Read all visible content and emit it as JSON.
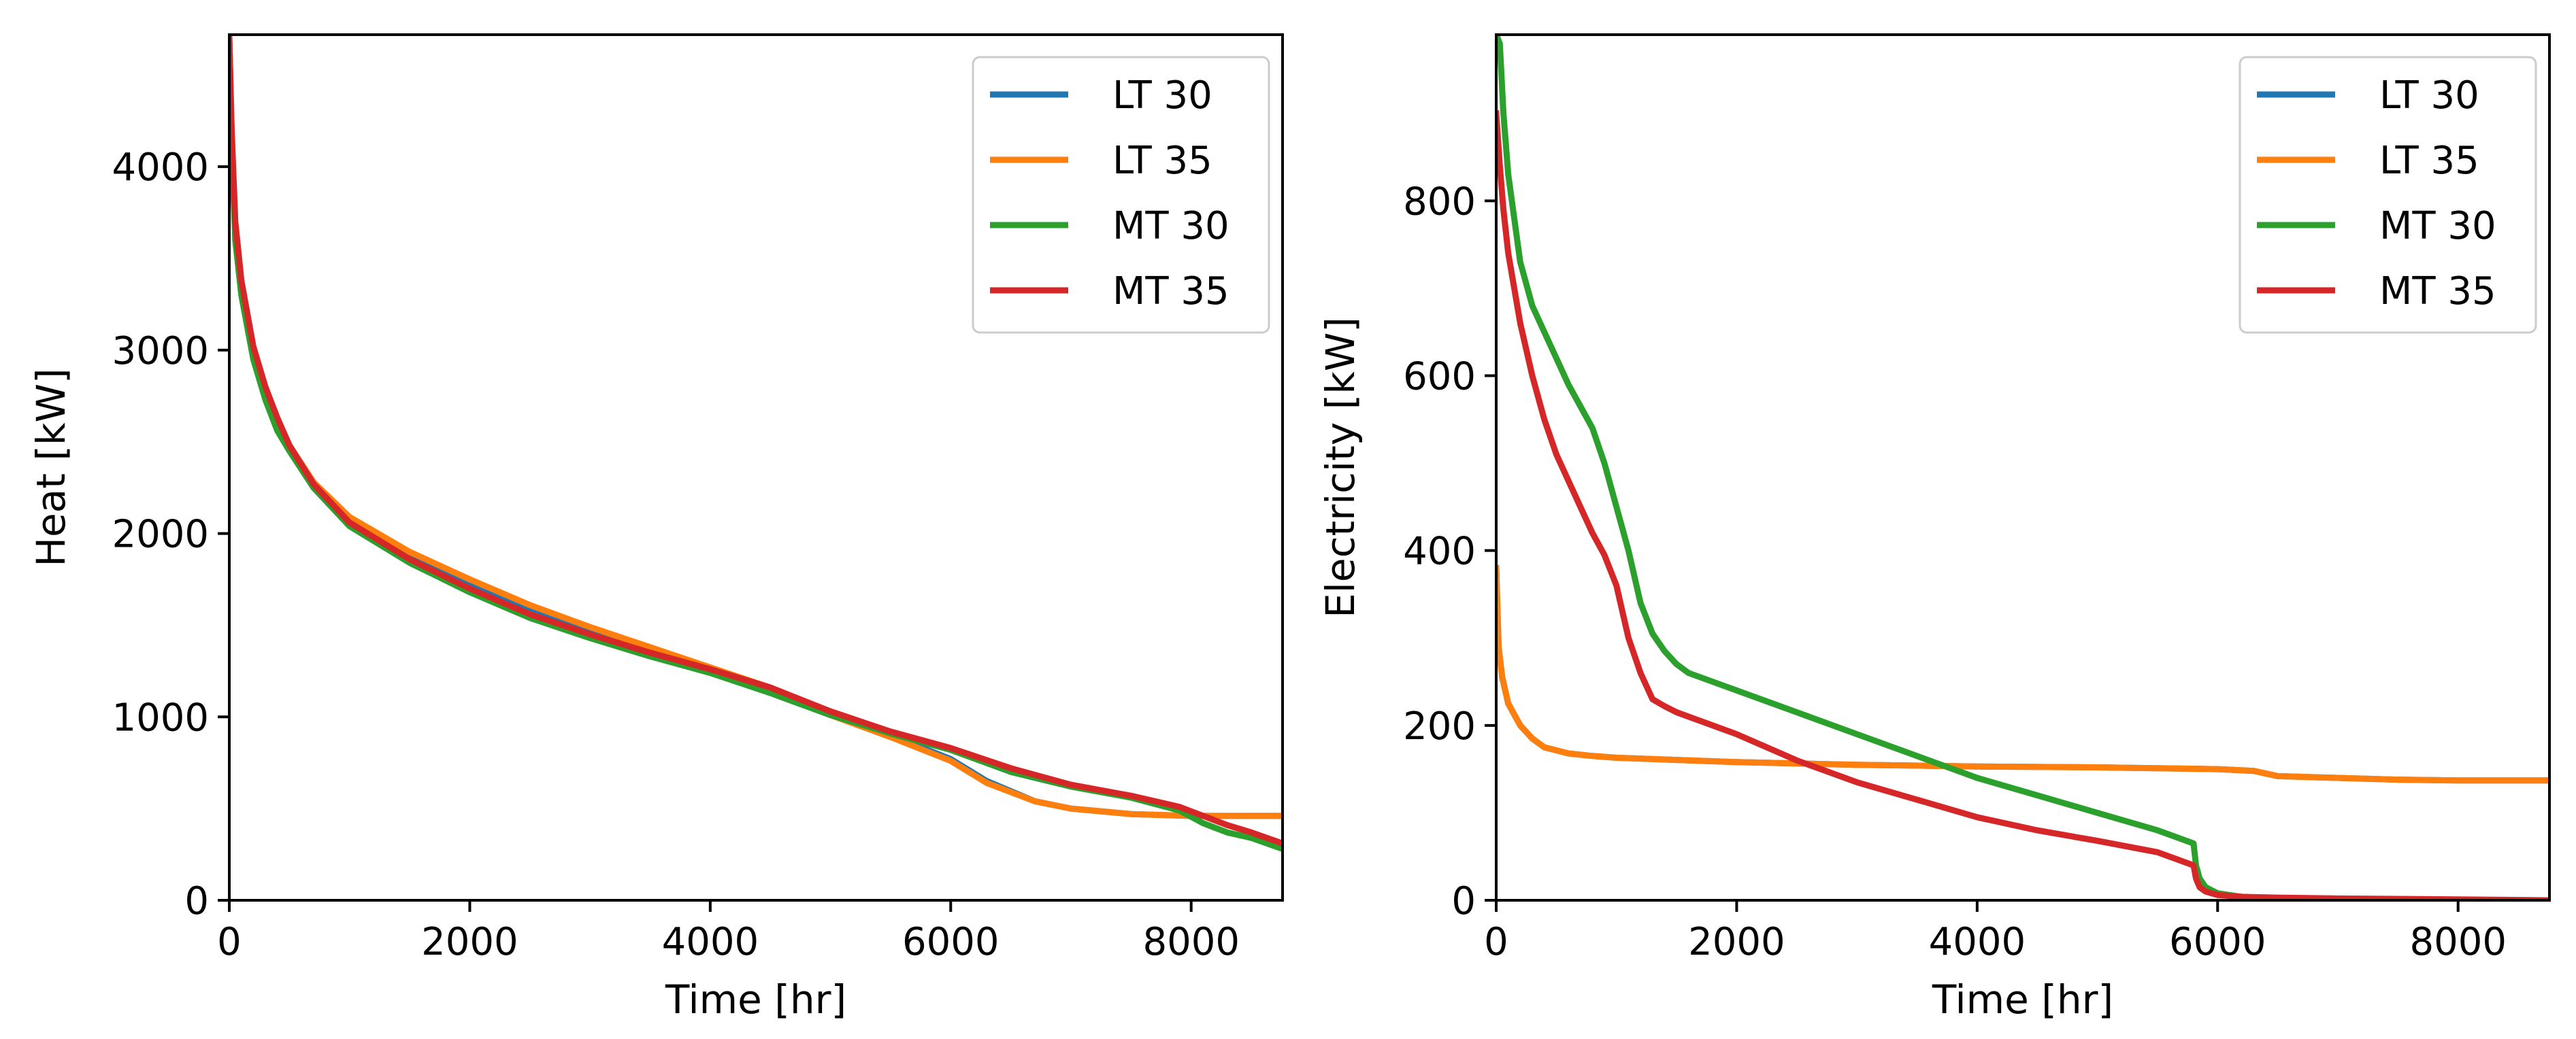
{
  "chart_data": [
    {
      "type": "line",
      "xlabel": "Time [hr]",
      "ylabel": "Heat [kW]",
      "xlim": [
        0,
        8760
      ],
      "ylim": [
        0,
        4720
      ],
      "xticks": [
        0,
        2000,
        4000,
        6000,
        8000
      ],
      "yticks": [
        0,
        1000,
        2000,
        3000,
        4000
      ],
      "legend_position": "top-right",
      "series": [
        {
          "name": "LT 30",
          "color": "#1f77b4",
          "x": [
            0,
            20,
            50,
            100,
            200,
            300,
            400,
            500,
            700,
            1000,
            1500,
            2000,
            2500,
            3000,
            3500,
            4000,
            4500,
            5000,
            5500,
            6000,
            6300,
            6700,
            7000,
            7500,
            8000,
            8500,
            8760
          ],
          "y": [
            4700,
            4150,
            3650,
            3350,
            3000,
            2780,
            2620,
            2480,
            2280,
            2070,
            1870,
            1720,
            1580,
            1470,
            1360,
            1260,
            1150,
            1020,
            900,
            770,
            650,
            540,
            500,
            470,
            460,
            460,
            460
          ]
        },
        {
          "name": "LT 35",
          "color": "#ff7f0e",
          "x": [
            0,
            20,
            50,
            100,
            200,
            300,
            400,
            500,
            700,
            1000,
            1500,
            2000,
            2500,
            3000,
            3500,
            4000,
            4500,
            5000,
            5500,
            6000,
            6300,
            6700,
            7000,
            7500,
            8000,
            8500,
            8760
          ],
          "y": [
            4700,
            4150,
            3650,
            3350,
            3000,
            2780,
            2620,
            2480,
            2280,
            2090,
            1900,
            1750,
            1610,
            1490,
            1380,
            1270,
            1160,
            1010,
            890,
            760,
            640,
            540,
            500,
            470,
            460,
            460,
            460
          ]
        },
        {
          "name": "MT 30",
          "color": "#2ca02c",
          "x": [
            0,
            20,
            50,
            100,
            200,
            300,
            400,
            500,
            700,
            1000,
            1500,
            2000,
            2500,
            3000,
            3500,
            4000,
            4500,
            5000,
            5500,
            6000,
            6500,
            7000,
            7500,
            7900,
            8100,
            8300,
            8500,
            8760
          ],
          "y": [
            4700,
            4100,
            3600,
            3300,
            2950,
            2730,
            2560,
            2450,
            2250,
            2040,
            1840,
            1680,
            1540,
            1430,
            1330,
            1240,
            1130,
            1010,
            910,
            820,
            700,
            620,
            560,
            490,
            420,
            370,
            340,
            280
          ]
        },
        {
          "name": "MT 35",
          "color": "#d62728",
          "x": [
            0,
            20,
            50,
            100,
            200,
            300,
            400,
            500,
            700,
            1000,
            1500,
            2000,
            2500,
            3000,
            3500,
            4000,
            4500,
            5000,
            5500,
            6000,
            6500,
            7000,
            7500,
            7900,
            8100,
            8300,
            8500,
            8760
          ],
          "y": [
            4700,
            4200,
            3700,
            3380,
            3020,
            2800,
            2630,
            2480,
            2270,
            2060,
            1860,
            1700,
            1560,
            1450,
            1350,
            1260,
            1160,
            1030,
            920,
            830,
            720,
            630,
            570,
            510,
            460,
            410,
            370,
            310
          ]
        }
      ]
    },
    {
      "type": "line",
      "xlabel": "Time [hr]",
      "ylabel": "Electricity [kW]",
      "xlim": [
        0,
        8760
      ],
      "ylim": [
        0,
        990
      ],
      "xticks": [
        0,
        2000,
        4000,
        6000,
        8000
      ],
      "yticks": [
        0,
        200,
        400,
        600,
        800
      ],
      "legend_position": "top-right",
      "series": [
        {
          "name": "LT 30",
          "color": "#1f77b4",
          "x": [
            0,
            20,
            50,
            100,
            200,
            300,
            400,
            600,
            800,
            1000,
            2000,
            3000,
            4000,
            5000,
            6000,
            6300,
            6500,
            7000,
            7500,
            8000,
            8500,
            8760
          ],
          "y": [
            380,
            290,
            255,
            225,
            200,
            185,
            175,
            168,
            165,
            163,
            158,
            155,
            153,
            152,
            150,
            148,
            142,
            140,
            138,
            137,
            137,
            137
          ]
        },
        {
          "name": "LT 35",
          "color": "#ff7f0e",
          "x": [
            0,
            20,
            50,
            100,
            200,
            300,
            400,
            600,
            800,
            1000,
            2000,
            3000,
            4000,
            5000,
            6000,
            6300,
            6500,
            7000,
            7500,
            8000,
            8500,
            8760
          ],
          "y": [
            380,
            290,
            255,
            225,
            200,
            185,
            175,
            168,
            165,
            163,
            158,
            155,
            153,
            152,
            150,
            148,
            142,
            140,
            138,
            137,
            137,
            137
          ]
        },
        {
          "name": "MT 30",
          "color": "#2ca02c",
          "x": [
            0,
            30,
            60,
            100,
            150,
            200,
            300,
            400,
            500,
            600,
            800,
            900,
            1000,
            1100,
            1200,
            1300,
            1400,
            1500,
            1600,
            2000,
            2500,
            3000,
            3500,
            4000,
            4500,
            5000,
            5500,
            5800,
            5820,
            5850,
            5900,
            6000,
            6200,
            6500,
            7000,
            8000,
            8760
          ],
          "y": [
            990,
            980,
            900,
            830,
            780,
            730,
            680,
            650,
            620,
            590,
            540,
            500,
            450,
            400,
            340,
            305,
            285,
            270,
            260,
            240,
            215,
            190,
            165,
            140,
            120,
            100,
            80,
            65,
            40,
            25,
            15,
            8,
            4,
            2,
            1,
            0,
            0
          ]
        },
        {
          "name": "MT 35",
          "color": "#d62728",
          "x": [
            0,
            30,
            60,
            100,
            150,
            200,
            300,
            400,
            500,
            600,
            700,
            800,
            900,
            1000,
            1100,
            1200,
            1300,
            1400,
            1500,
            2000,
            2500,
            3000,
            3500,
            4000,
            4500,
            5000,
            5500,
            5800,
            5820,
            5850,
            5900,
            6000,
            6200,
            6500,
            7000,
            8000,
            8760
          ],
          "y": [
            900,
            840,
            790,
            740,
            700,
            660,
            600,
            550,
            510,
            480,
            450,
            420,
            395,
            360,
            300,
            260,
            230,
            222,
            215,
            190,
            160,
            135,
            115,
            95,
            80,
            68,
            55,
            40,
            25,
            15,
            10,
            6,
            4,
            3,
            2,
            1,
            0
          ]
        }
      ]
    }
  ]
}
